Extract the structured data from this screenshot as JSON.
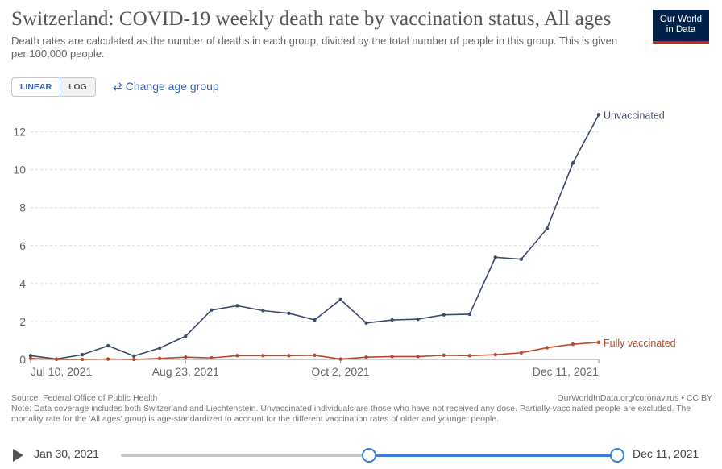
{
  "header": {
    "title": "Switzerland: COVID-19 weekly death rate by vaccination status, All ages",
    "subtitle": "Death rates are calculated as the number of deaths in each group, divided by the total number of people in this group. This is given per 100,000 people.",
    "logo_line1": "Our World",
    "logo_line2": "in Data"
  },
  "controls": {
    "linear_label": "LINEAR",
    "log_label": "LOG",
    "change_age_label": "Change age group",
    "active_scale": "linear"
  },
  "chart_data": {
    "type": "line",
    "x_tick_labels": [
      "Jul 10, 2021",
      "Aug 23, 2021",
      "Oct 2, 2021",
      "Dec 11, 2021"
    ],
    "y_ticks": [
      0,
      2,
      4,
      6,
      8,
      10,
      12
    ],
    "ylim": [
      0,
      13
    ],
    "grid": "horizontal dashed",
    "series": [
      {
        "name": "Unvaccinated",
        "color": "#3c4a6b",
        "values": [
          0.2,
          0.02,
          0.25,
          0.72,
          0.18,
          0.6,
          1.22,
          2.6,
          2.83,
          2.57,
          2.43,
          2.08,
          3.15,
          1.92,
          2.08,
          2.12,
          2.35,
          2.38,
          5.38,
          5.28,
          6.9,
          10.35,
          12.9
        ]
      },
      {
        "name": "Fully vaccinated",
        "color": "#b84a2a",
        "values": [
          0.05,
          0.0,
          0.0,
          0.02,
          0.0,
          0.05,
          0.12,
          0.08,
          0.2,
          0.2,
          0.2,
          0.22,
          0.02,
          0.12,
          0.15,
          0.15,
          0.22,
          0.2,
          0.25,
          0.35,
          0.62,
          0.8,
          0.9
        ]
      }
    ]
  },
  "footer": {
    "source": "Source: Federal Office of Public Health",
    "site": "OurWorldInData.org/coronavirus • CC BY",
    "note": "Note: Data coverage includes both Switzerland and Liechtenstein. Unvaccinated individuals are those who have not received any dose. Partially-vaccinated people are excluded. The mortality rate for the 'All ages' group is age-standardized to account for the different vaccination rates of older and younger people."
  },
  "timeline": {
    "start_label": "Jan 30, 2021",
    "end_label": "Dec 11, 2021",
    "selection_start_fraction": 0.5,
    "selection_end_fraction": 1.0
  }
}
